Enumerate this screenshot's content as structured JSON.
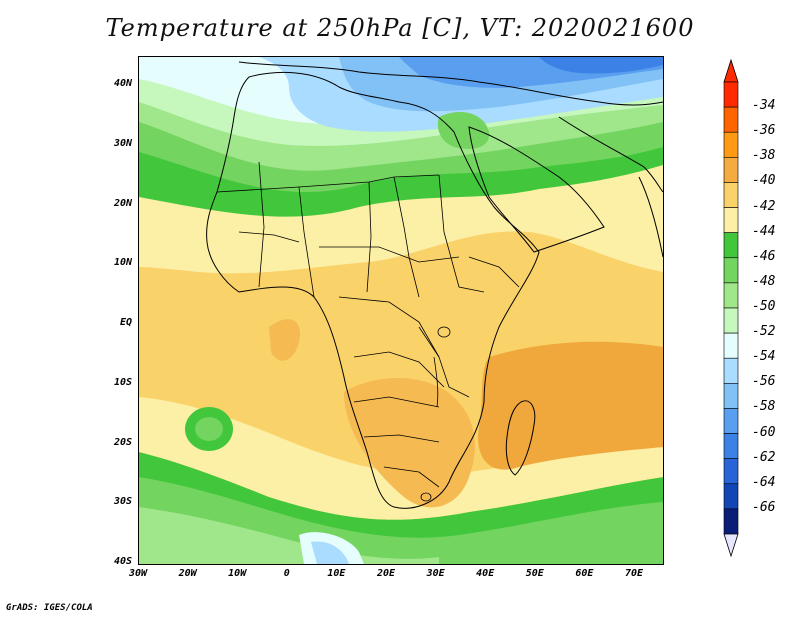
{
  "title": "Temperature at 250hPa [C], VT: 2020021600",
  "credit": "GrADS: IGES/COLA",
  "lat_labels": [
    "40N",
    "30N",
    "20N",
    "10N",
    "EQ",
    "10S",
    "20S",
    "30S",
    "40S"
  ],
  "lon_labels": [
    "30W",
    "20W",
    "10W",
    "0",
    "10E",
    "20E",
    "30E",
    "40E",
    "50E",
    "60E",
    "70E"
  ],
  "colorbar": {
    "labels": [
      "-34",
      "-36",
      "-38",
      "-40",
      "-42",
      "-44",
      "-46",
      "-48",
      "-50",
      "-52",
      "-54",
      "-56",
      "-58",
      "-60",
      "-62",
      "-64",
      "-66"
    ],
    "colors": [
      "#ff2a00",
      "#ff6400",
      "#ff9a14",
      "#f5ab40",
      "#fad26a",
      "#fcefa6",
      "#41c63c",
      "#73d460",
      "#a0e68a",
      "#c6f7bd",
      "#e6fdfd",
      "#aadcff",
      "#82c1f6",
      "#5a9eef",
      "#3c82e6",
      "#2864d8",
      "#1246b4",
      "#0a1e78"
    ],
    "triangle_top": "#ff2a00",
    "triangle_bottom": "#e6e6ff"
  },
  "map_colors": {
    "t36": "#f0a83c",
    "t38": "#f5ba52",
    "t40": "#fad26a",
    "t42": "#fcefa6",
    "t44": "#41c63c",
    "t46": "#73d460",
    "t48": "#a0e68a",
    "t50": "#c6f7bd",
    "t52": "#e6fdfd",
    "t54": "#aadcff",
    "t56": "#82c1f6",
    "t58": "#5a9eef",
    "t60": "#3c82e6"
  }
}
